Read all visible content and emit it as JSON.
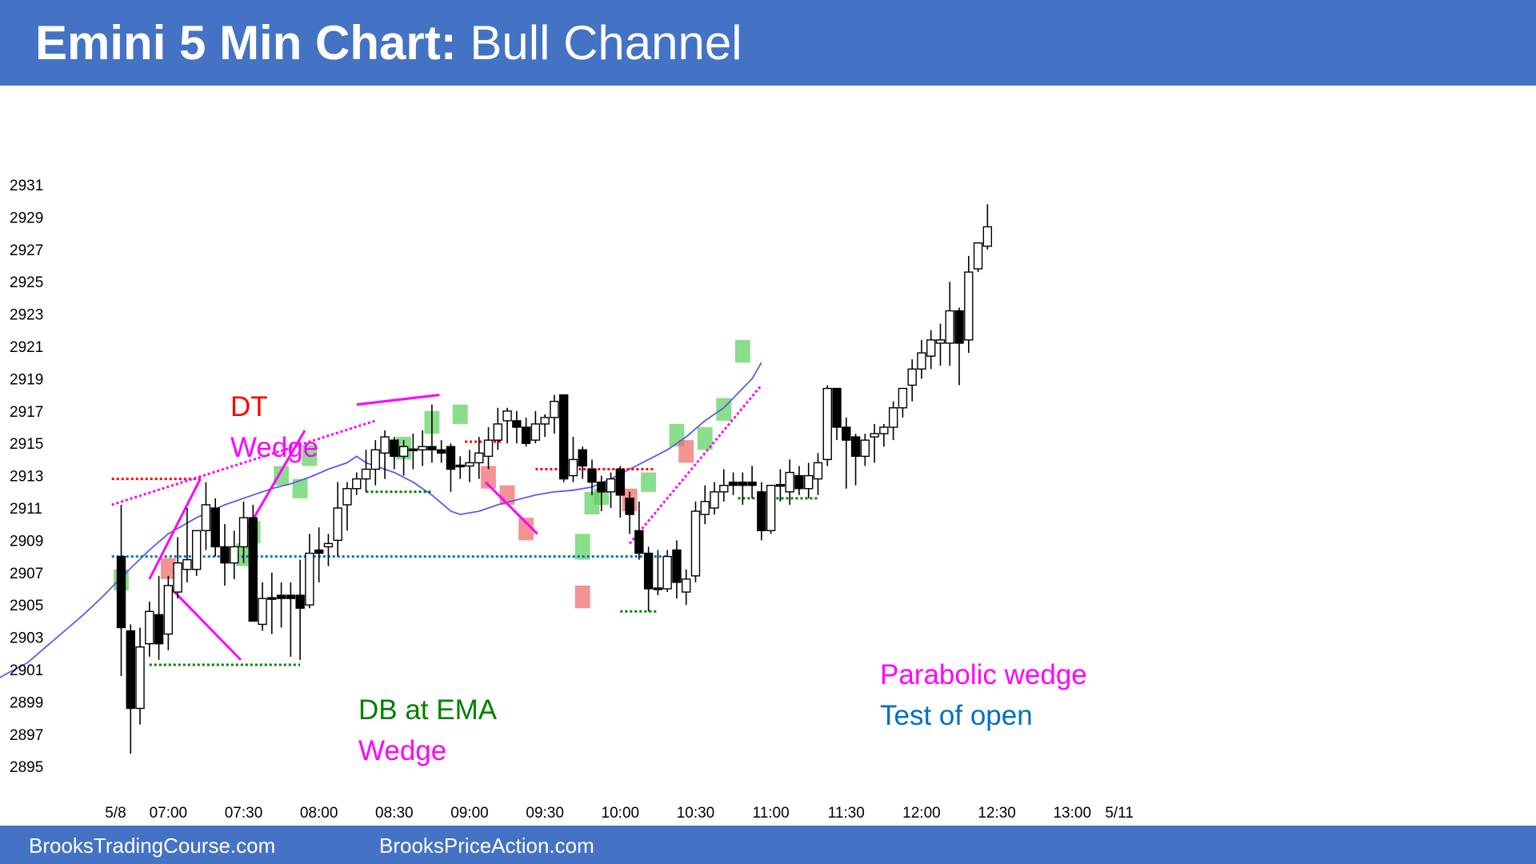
{
  "header": {
    "title_bold": "Emini 5 Min Chart:",
    "title_rest": " Bull Channel"
  },
  "footer": {
    "left_link": "BrooksTradingCourse.com",
    "right_link": "BrooksPriceAction.com"
  },
  "colors": {
    "header_bg": "#4472c4",
    "bull_body": "#ffffff",
    "bear_body": "#000000",
    "ema": "#5b5bf0",
    "bull_highlight": "#5dd05d",
    "bear_highlight": "#f06a6a",
    "magenta": "#ff00ff",
    "red": "#ff0000",
    "green": "#008000",
    "blue": "#0070c0"
  },
  "chart_data": {
    "type": "candlestick",
    "title": "Emini 5 Min Chart: Bull Channel",
    "ylim": [
      2894,
      2932
    ],
    "y_ticks": [
      2931,
      2929,
      2927,
      2925,
      2923,
      2921,
      2919,
      2917,
      2915,
      2913,
      2911,
      2909,
      2907,
      2905,
      2903,
      2901,
      2899,
      2897,
      2895
    ],
    "x_tick_labels": [
      "5/8",
      "07:00",
      "07:30",
      "08:00",
      "08:30",
      "09:00",
      "09:30",
      "10:00",
      "10:30",
      "11:00",
      "11:30",
      "12:00",
      "12:30",
      "13:00",
      "5/11"
    ],
    "x_tick_bar_index": [
      -0.6,
      5,
      13,
      21,
      29,
      37,
      45,
      53,
      61,
      69,
      77,
      85,
      93,
      101,
      106
    ],
    "candles": [
      {
        "o": 2908.0,
        "h": 2911.2,
        "l": 2900.6,
        "c": 2903.6
      },
      {
        "o": 2903.4,
        "h": 2903.8,
        "l": 2895.8,
        "c": 2898.6
      },
      {
        "o": 2898.6,
        "h": 2903.6,
        "l": 2897.6,
        "c": 2902.4
      },
      {
        "o": 2902.6,
        "h": 2905.2,
        "l": 2901.8,
        "c": 2904.6
      },
      {
        "o": 2904.4,
        "h": 2906.8,
        "l": 2901.6,
        "c": 2902.6
      },
      {
        "o": 2903.2,
        "h": 2906.8,
        "l": 2902.2,
        "c": 2906.2
      },
      {
        "o": 2905.8,
        "h": 2909.2,
        "l": 2905.4,
        "c": 2907.6
      },
      {
        "o": 2907.2,
        "h": 2911.0,
        "l": 2906.4,
        "c": 2907.8
      },
      {
        "o": 2907.2,
        "h": 2909.6,
        "l": 2906.8,
        "c": 2909.6
      },
      {
        "o": 2909.6,
        "h": 2912.6,
        "l": 2908.4,
        "c": 2911.2
      },
      {
        "o": 2911.0,
        "h": 2911.6,
        "l": 2908.0,
        "c": 2908.6
      },
      {
        "o": 2908.6,
        "h": 2910.0,
        "l": 2906.2,
        "c": 2907.6
      },
      {
        "o": 2907.6,
        "h": 2909.6,
        "l": 2906.6,
        "c": 2908.6
      },
      {
        "o": 2908.6,
        "h": 2911.4,
        "l": 2907.6,
        "c": 2910.4
      },
      {
        "o": 2910.4,
        "h": 2911.2,
        "l": 2904.0,
        "c": 2904.0
      },
      {
        "o": 2903.8,
        "h": 2906.4,
        "l": 2903.4,
        "c": 2905.4
      },
      {
        "o": 2905.4,
        "h": 2907.0,
        "l": 2903.2,
        "c": 2905.4
      },
      {
        "o": 2905.6,
        "h": 2906.4,
        "l": 2903.6,
        "c": 2905.4
      },
      {
        "o": 2905.6,
        "h": 2906.4,
        "l": 2901.8,
        "c": 2905.4
      },
      {
        "o": 2905.6,
        "h": 2907.8,
        "l": 2901.6,
        "c": 2904.8
      },
      {
        "o": 2905.0,
        "h": 2909.4,
        "l": 2904.8,
        "c": 2908.2
      },
      {
        "o": 2908.4,
        "h": 2909.8,
        "l": 2906.4,
        "c": 2908.2
      },
      {
        "o": 2908.6,
        "h": 2909.4,
        "l": 2907.4,
        "c": 2908.8
      },
      {
        "o": 2909.0,
        "h": 2912.6,
        "l": 2908.0,
        "c": 2911.0
      },
      {
        "o": 2911.2,
        "h": 2912.6,
        "l": 2909.6,
        "c": 2912.2
      },
      {
        "o": 2912.2,
        "h": 2913.2,
        "l": 2911.8,
        "c": 2912.8
      },
      {
        "o": 2912.8,
        "h": 2914.6,
        "l": 2912.0,
        "c": 2913.4
      },
      {
        "o": 2913.4,
        "h": 2915.2,
        "l": 2912.4,
        "c": 2914.6
      },
      {
        "o": 2914.4,
        "h": 2915.8,
        "l": 2912.8,
        "c": 2915.4
      },
      {
        "o": 2915.2,
        "h": 2915.4,
        "l": 2913.4,
        "c": 2914.2
      },
      {
        "o": 2914.2,
        "h": 2915.2,
        "l": 2913.0,
        "c": 2914.8
      },
      {
        "o": 2914.6,
        "h": 2915.6,
        "l": 2913.4,
        "c": 2914.6
      },
      {
        "o": 2914.6,
        "h": 2915.8,
        "l": 2913.6,
        "c": 2914.8
      },
      {
        "o": 2914.8,
        "h": 2917.4,
        "l": 2913.8,
        "c": 2914.6
      },
      {
        "o": 2914.6,
        "h": 2915.2,
        "l": 2913.8,
        "c": 2914.4
      },
      {
        "o": 2914.8,
        "h": 2915.0,
        "l": 2912.0,
        "c": 2913.4
      },
      {
        "o": 2913.6,
        "h": 2914.2,
        "l": 2912.8,
        "c": 2913.6
      },
      {
        "o": 2913.6,
        "h": 2914.6,
        "l": 2912.6,
        "c": 2913.8
      },
      {
        "o": 2913.8,
        "h": 2915.4,
        "l": 2912.8,
        "c": 2914.4
      },
      {
        "o": 2914.2,
        "h": 2916.0,
        "l": 2913.4,
        "c": 2915.2
      },
      {
        "o": 2915.2,
        "h": 2917.2,
        "l": 2914.6,
        "c": 2916.2
      },
      {
        "o": 2916.4,
        "h": 2917.2,
        "l": 2915.0,
        "c": 2917.0
      },
      {
        "o": 2916.4,
        "h": 2917.0,
        "l": 2915.0,
        "c": 2916.0
      },
      {
        "o": 2916.0,
        "h": 2916.6,
        "l": 2914.8,
        "c": 2915.0
      },
      {
        "o": 2915.2,
        "h": 2917.0,
        "l": 2915.0,
        "c": 2916.2
      },
      {
        "o": 2916.2,
        "h": 2916.8,
        "l": 2915.4,
        "c": 2916.6
      },
      {
        "o": 2916.6,
        "h": 2918.0,
        "l": 2915.6,
        "c": 2917.6
      },
      {
        "o": 2918.0,
        "h": 2918.0,
        "l": 2912.6,
        "c": 2912.8
      },
      {
        "o": 2913.0,
        "h": 2915.4,
        "l": 2912.6,
        "c": 2914.0
      },
      {
        "o": 2914.6,
        "h": 2914.8,
        "l": 2912.8,
        "c": 2913.6
      },
      {
        "o": 2913.4,
        "h": 2914.0,
        "l": 2911.8,
        "c": 2912.6
      },
      {
        "o": 2912.6,
        "h": 2913.0,
        "l": 2910.8,
        "c": 2912.0
      },
      {
        "o": 2912.0,
        "h": 2913.2,
        "l": 2911.0,
        "c": 2912.8
      },
      {
        "o": 2913.4,
        "h": 2913.6,
        "l": 2910.4,
        "c": 2911.8
      },
      {
        "o": 2911.6,
        "h": 2912.0,
        "l": 2909.4,
        "c": 2910.6
      },
      {
        "o": 2909.6,
        "h": 2911.4,
        "l": 2907.8,
        "c": 2908.2
      },
      {
        "o": 2908.2,
        "h": 2908.6,
        "l": 2904.6,
        "c": 2906.0
      },
      {
        "o": 2906.0,
        "h": 2908.4,
        "l": 2905.6,
        "c": 2906.0
      },
      {
        "o": 2906.0,
        "h": 2908.4,
        "l": 2905.8,
        "c": 2908.0
      },
      {
        "o": 2908.4,
        "h": 2909.0,
        "l": 2905.4,
        "c": 2906.4
      },
      {
        "o": 2905.8,
        "h": 2907.2,
        "l": 2905.0,
        "c": 2906.6
      },
      {
        "o": 2906.8,
        "h": 2911.4,
        "l": 2906.4,
        "c": 2910.8
      },
      {
        "o": 2910.6,
        "h": 2912.4,
        "l": 2910.0,
        "c": 2911.4
      },
      {
        "o": 2911.0,
        "h": 2912.6,
        "l": 2910.6,
        "c": 2912.0
      },
      {
        "o": 2912.0,
        "h": 2913.4,
        "l": 2911.4,
        "c": 2912.4
      },
      {
        "o": 2912.6,
        "h": 2913.2,
        "l": 2911.8,
        "c": 2912.4
      },
      {
        "o": 2912.6,
        "h": 2913.2,
        "l": 2911.2,
        "c": 2912.4
      },
      {
        "o": 2912.6,
        "h": 2913.6,
        "l": 2911.6,
        "c": 2912.4
      },
      {
        "o": 2912.0,
        "h": 2912.6,
        "l": 2909.0,
        "c": 2909.6
      },
      {
        "o": 2909.6,
        "h": 2912.4,
        "l": 2909.4,
        "c": 2912.4
      },
      {
        "o": 2912.4,
        "h": 2913.4,
        "l": 2911.4,
        "c": 2912.4
      },
      {
        "o": 2912.0,
        "h": 2914.0,
        "l": 2911.2,
        "c": 2913.2
      },
      {
        "o": 2913.0,
        "h": 2913.6,
        "l": 2911.8,
        "c": 2912.2
      },
      {
        "o": 2912.2,
        "h": 2913.8,
        "l": 2911.6,
        "c": 2913.0
      },
      {
        "o": 2912.8,
        "h": 2914.4,
        "l": 2911.8,
        "c": 2913.8
      },
      {
        "o": 2914.0,
        "h": 2918.6,
        "l": 2913.6,
        "c": 2918.4
      },
      {
        "o": 2918.4,
        "h": 2918.4,
        "l": 2915.2,
        "c": 2916.0
      },
      {
        "o": 2916.0,
        "h": 2916.6,
        "l": 2912.2,
        "c": 2915.2
      },
      {
        "o": 2915.4,
        "h": 2915.6,
        "l": 2912.4,
        "c": 2914.2
      },
      {
        "o": 2914.2,
        "h": 2915.6,
        "l": 2913.6,
        "c": 2915.2
      },
      {
        "o": 2915.4,
        "h": 2916.2,
        "l": 2913.8,
        "c": 2915.6
      },
      {
        "o": 2915.6,
        "h": 2916.2,
        "l": 2914.8,
        "c": 2916.0
      },
      {
        "o": 2916.0,
        "h": 2917.6,
        "l": 2915.2,
        "c": 2917.2
      },
      {
        "o": 2917.2,
        "h": 2918.4,
        "l": 2916.6,
        "c": 2918.4
      },
      {
        "o": 2918.6,
        "h": 2920.2,
        "l": 2917.6,
        "c": 2919.6
      },
      {
        "o": 2919.6,
        "h": 2921.4,
        "l": 2919.0,
        "c": 2920.6
      },
      {
        "o": 2920.4,
        "h": 2922.0,
        "l": 2919.6,
        "c": 2921.4
      },
      {
        "o": 2921.2,
        "h": 2922.4,
        "l": 2919.8,
        "c": 2921.4
      },
      {
        "o": 2921.2,
        "h": 2925.0,
        "l": 2919.8,
        "c": 2923.2
      },
      {
        "o": 2923.2,
        "h": 2923.4,
        "l": 2918.6,
        "c": 2921.2
      },
      {
        "o": 2921.4,
        "h": 2926.6,
        "l": 2920.6,
        "c": 2925.6
      },
      {
        "o": 2925.8,
        "h": 2927.4,
        "l": 2925.6,
        "c": 2927.4
      },
      {
        "o": 2927.2,
        "h": 2929.8,
        "l": 2927.0,
        "c": 2928.4
      }
    ],
    "ema": [
      [
        -16.5,
        2898.8
      ],
      [
        -15,
        2899.8
      ],
      [
        -13.5,
        2900.3
      ],
      [
        -12,
        2900.8
      ],
      [
        -10,
        2901.4
      ],
      [
        -8,
        2902.4
      ],
      [
        -6,
        2903.4
      ],
      [
        -4,
        2904.4
      ],
      [
        -2,
        2905.5
      ],
      [
        0,
        2906.7
      ],
      [
        3,
        2908.4
      ],
      [
        5,
        2909.4
      ],
      [
        8,
        2910.4
      ],
      [
        11,
        2911.2
      ],
      [
        14,
        2911.8
      ],
      [
        16,
        2912.2
      ],
      [
        18,
        2912.5
      ],
      [
        20,
        2912.9
      ],
      [
        22,
        2913.4
      ],
      [
        24,
        2913.8
      ],
      [
        25,
        2914.2
      ],
      [
        26,
        2913.8
      ],
      [
        27,
        2913.6
      ],
      [
        29,
        2913.2
      ],
      [
        31,
        2912.6
      ],
      [
        33,
        2911.8
      ],
      [
        35,
        2910.8
      ],
      [
        36,
        2910.6
      ],
      [
        38,
        2910.8
      ],
      [
        40,
        2911.2
      ],
      [
        42,
        2911.5
      ],
      [
        44,
        2911.8
      ],
      [
        46,
        2912.0
      ],
      [
        48,
        2912.1
      ],
      [
        50,
        2912.3
      ],
      [
        52,
        2912.8
      ],
      [
        54,
        2913.4
      ],
      [
        56,
        2914.0
      ],
      [
        58,
        2914.6
      ],
      [
        60,
        2915.4
      ],
      [
        62,
        2916.4
      ],
      [
        64,
        2917.2
      ],
      [
        66,
        2918.4
      ],
      [
        67,
        2919.0
      ],
      [
        68,
        2920.0
      ]
    ],
    "highlights": [
      {
        "type": "bull",
        "x0": -0.8,
        "x1": 0.8,
        "y0": 2905.9,
        "y1": 2907.2
      },
      {
        "type": "bear",
        "x0": 4.2,
        "x1": 5.8,
        "y0": 2906.6,
        "y1": 2907.9
      },
      {
        "type": "bull",
        "x0": 12.2,
        "x1": 13.8,
        "y0": 2907.4,
        "y1": 2908.8
      },
      {
        "type": "bull",
        "x0": 13.2,
        "x1": 14.8,
        "y0": 2908.8,
        "y1": 2910.2
      },
      {
        "type": "bull",
        "x0": 16.2,
        "x1": 17.8,
        "y0": 2912.4,
        "y1": 2913.6
      },
      {
        "type": "bull",
        "x0": 18.2,
        "x1": 19.8,
        "y0": 2911.6,
        "y1": 2912.8
      },
      {
        "type": "bull",
        "x0": 19.2,
        "x1": 20.8,
        "y0": 2913.6,
        "y1": 2914.9
      },
      {
        "type": "bull",
        "x0": 29.2,
        "x1": 30.8,
        "y0": 2914.0,
        "y1": 2915.4
      },
      {
        "type": "bull",
        "x0": 32.2,
        "x1": 33.8,
        "y0": 2915.6,
        "y1": 2917.0
      },
      {
        "type": "bull",
        "x0": 35.2,
        "x1": 36.8,
        "y0": 2916.2,
        "y1": 2917.4
      },
      {
        "type": "bear",
        "x0": 38.2,
        "x1": 39.8,
        "y0": 2912.2,
        "y1": 2913.6
      },
      {
        "type": "bear",
        "x0": 40.2,
        "x1": 41.8,
        "y0": 2911.2,
        "y1": 2912.4
      },
      {
        "type": "bear",
        "x0": 42.2,
        "x1": 43.8,
        "y0": 2909.0,
        "y1": 2910.4
      },
      {
        "type": "bull",
        "x0": 48.2,
        "x1": 49.8,
        "y0": 2907.8,
        "y1": 2909.4
      },
      {
        "type": "bear",
        "x0": 48.2,
        "x1": 49.8,
        "y0": 2904.8,
        "y1": 2906.2
      },
      {
        "type": "bull",
        "x0": 49.2,
        "x1": 50.8,
        "y0": 2910.6,
        "y1": 2912.0
      },
      {
        "type": "bull",
        "x0": 50.2,
        "x1": 51.8,
        "y0": 2911.2,
        "y1": 2912.2
      },
      {
        "type": "bear",
        "x0": 53.2,
        "x1": 54.8,
        "y0": 2910.8,
        "y1": 2912.2
      },
      {
        "type": "bull",
        "x0": 55.2,
        "x1": 56.8,
        "y0": 2912.0,
        "y1": 2913.2
      },
      {
        "type": "bull",
        "x0": 58.2,
        "x1": 59.8,
        "y0": 2914.8,
        "y1": 2916.2
      },
      {
        "type": "bear",
        "x0": 59.2,
        "x1": 60.8,
        "y0": 2913.8,
        "y1": 2915.2
      },
      {
        "type": "bull",
        "x0": 61.2,
        "x1": 62.8,
        "y0": 2914.6,
        "y1": 2916.0
      },
      {
        "type": "bull",
        "x0": 63.2,
        "x1": 64.8,
        "y0": 2916.4,
        "y1": 2917.8
      },
      {
        "type": "bull",
        "x0": 65.2,
        "x1": 66.8,
        "y0": 2920.0,
        "y1": 2921.4
      }
    ],
    "annotations": [
      {
        "text": "DT",
        "color": "red"
      },
      {
        "text": "Wedge",
        "color": "magenta"
      },
      {
        "text": "DB at EMA",
        "color": "green"
      },
      {
        "text": "Wedge",
        "color": "magenta"
      },
      {
        "text": "Parabolic wedge",
        "color": "magenta"
      },
      {
        "text": "Test of open",
        "color": "blue"
      }
    ],
    "lines": [
      {
        "kind": "dotted",
        "color": "blue",
        "x0": -1,
        "y0": 2908.0,
        "x1": 58,
        "y1": 2908.0
      },
      {
        "kind": "dotted",
        "color": "red",
        "x0": -1,
        "y0": 2912.8,
        "x1": 8.5,
        "y1": 2912.8
      },
      {
        "kind": "dotted",
        "color": "red",
        "x0": 36.5,
        "y0": 2915.1,
        "x1": 40.5,
        "y1": 2915.1
      },
      {
        "kind": "dotted",
        "color": "red",
        "x0": 44,
        "y0": 2913.4,
        "x1": 56.5,
        "y1": 2913.4
      },
      {
        "kind": "dotted",
        "color": "green",
        "x0": 3,
        "y0": 2901.3,
        "x1": 19,
        "y1": 2901.3
      },
      {
        "kind": "dotted",
        "color": "green",
        "x0": 26,
        "y0": 2912.0,
        "x1": 33,
        "y1": 2912.0
      },
      {
        "kind": "dotted",
        "color": "green",
        "x0": 53,
        "y0": 2904.6,
        "x1": 57,
        "y1": 2904.6
      },
      {
        "kind": "dotted",
        "color": "green",
        "x0": 65.5,
        "y0": 2911.6,
        "x1": 74,
        "y1": 2911.6
      },
      {
        "kind": "dotted",
        "color": "magenta",
        "x0": -1,
        "y0": 2911.2,
        "x1": 27,
        "y1": 2916.4
      },
      {
        "kind": "dotted",
        "color": "magenta",
        "x0": 54,
        "y0": 2908.8,
        "x1": 68,
        "y1": 2918.6
      },
      {
        "kind": "solid",
        "color": "magenta",
        "x0": 3,
        "y0": 2906.6,
        "x1": 8.4,
        "y1": 2912.8
      },
      {
        "kind": "solid",
        "color": "magenta",
        "x0": 5,
        "y0": 2906.2,
        "x1": 12.7,
        "y1": 2901.6
      },
      {
        "kind": "solid",
        "color": "magenta",
        "x0": 12.7,
        "y0": 2909.0,
        "x1": 19.5,
        "y1": 2915.8
      },
      {
        "kind": "solid",
        "color": "magenta",
        "x0": 25,
        "y0": 2917.4,
        "x1": 33.8,
        "y1": 2918.0
      },
      {
        "kind": "solid",
        "color": "magenta",
        "x0": 38.7,
        "y0": 2912.6,
        "x1": 44.2,
        "y1": 2909.4
      }
    ]
  }
}
